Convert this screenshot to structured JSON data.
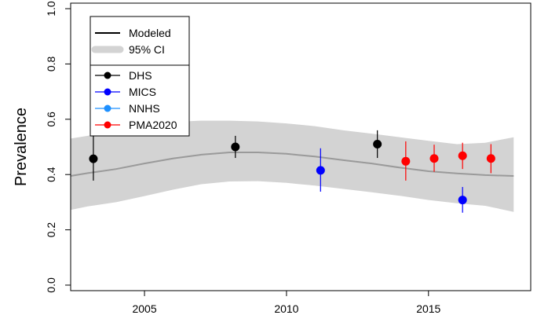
{
  "chart_data": {
    "type": "line",
    "ylabel": "Prevalence",
    "xlim": [
      2002.4,
      2018.6
    ],
    "ylim": [
      -0.02,
      1.02
    ],
    "x_ticks": [
      2005,
      2010,
      2015
    ],
    "y_ticks": [
      0.0,
      0.2,
      0.4,
      0.6,
      0.8,
      1.0
    ],
    "x_tick_labels": [
      "2005",
      "2010",
      "2015"
    ],
    "y_tick_labels": [
      "0.0",
      "0.2",
      "0.4",
      "0.6",
      "0.8",
      "1.0"
    ],
    "grid": false,
    "modeled": {
      "color": "#9a9a9a",
      "x": [
        2002.4,
        2003,
        2004,
        2005,
        2006,
        2007,
        2008,
        2009,
        2010,
        2011,
        2012,
        2013,
        2014,
        2015,
        2016,
        2017,
        2018
      ],
      "y": [
        0.395,
        0.405,
        0.42,
        0.44,
        0.458,
        0.472,
        0.48,
        0.48,
        0.475,
        0.465,
        0.452,
        0.44,
        0.425,
        0.412,
        0.404,
        0.398,
        0.395
      ],
      "lower": [
        0.272,
        0.285,
        0.3,
        0.322,
        0.345,
        0.365,
        0.375,
        0.376,
        0.37,
        0.36,
        0.348,
        0.336,
        0.323,
        0.308,
        0.296,
        0.287,
        0.265
      ],
      "upper": [
        0.53,
        0.54,
        0.56,
        0.578,
        0.59,
        0.595,
        0.595,
        0.592,
        0.585,
        0.575,
        0.56,
        0.548,
        0.535,
        0.522,
        0.51,
        0.515,
        0.535
      ]
    },
    "band_color": "#d3d3d3",
    "series": [
      {
        "name": "DHS",
        "color": "#000000",
        "points": [
          {
            "x": 2003.2,
            "y": 0.457,
            "lo": 0.378,
            "hi": 0.54
          },
          {
            "x": 2008.2,
            "y": 0.5,
            "lo": 0.46,
            "hi": 0.54
          },
          {
            "x": 2013.2,
            "y": 0.51,
            "lo": 0.46,
            "hi": 0.56
          }
        ]
      },
      {
        "name": "MICS",
        "color": "#0000ff",
        "points": [
          {
            "x": 2011.2,
            "y": 0.415,
            "lo": 0.338,
            "hi": 0.495
          },
          {
            "x": 2016.2,
            "y": 0.308,
            "lo": 0.262,
            "hi": 0.355
          }
        ]
      },
      {
        "name": "NNHS",
        "color": "#1e90ff",
        "points": []
      },
      {
        "name": "PMA2020",
        "color": "#ff0000",
        "points": [
          {
            "x": 2014.2,
            "y": 0.448,
            "lo": 0.378,
            "hi": 0.52
          },
          {
            "x": 2015.2,
            "y": 0.458,
            "lo": 0.41,
            "hi": 0.508
          },
          {
            "x": 2016.2,
            "y": 0.468,
            "lo": 0.42,
            "hi": 0.515
          },
          {
            "x": 2017.2,
            "y": 0.458,
            "lo": 0.405,
            "hi": 0.51
          }
        ]
      }
    ],
    "legend_top": {
      "position": "top-left",
      "entries": [
        {
          "label": "Modeled",
          "color": "#000000",
          "kind": "line"
        },
        {
          "label": "95% CI",
          "color": "#d3d3d3",
          "kind": "band"
        }
      ]
    },
    "legend_bottom": {
      "position": "top-left",
      "entries": [
        {
          "label": "DHS",
          "color": "#000000"
        },
        {
          "label": "MICS",
          "color": "#0000ff"
        },
        {
          "label": "NNHS",
          "color": "#1e90ff"
        },
        {
          "label": "PMA2020",
          "color": "#ff0000"
        }
      ]
    }
  }
}
